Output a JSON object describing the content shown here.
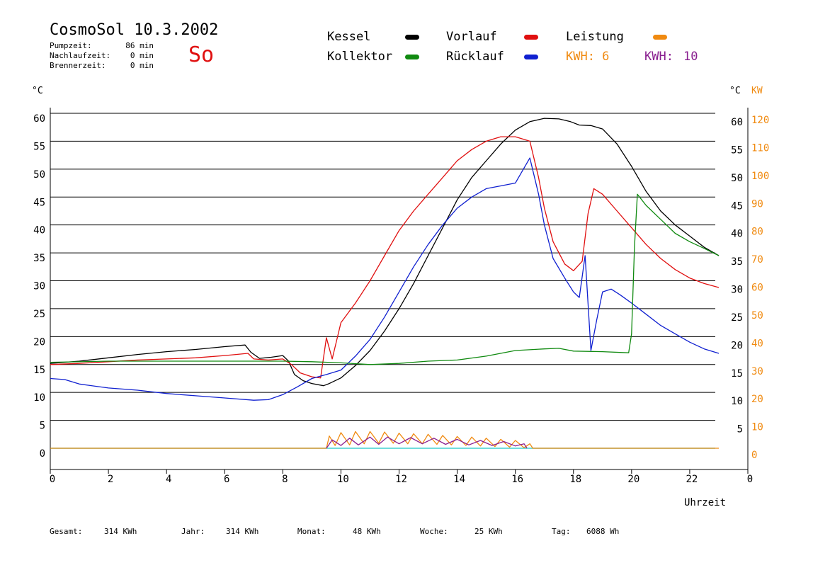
{
  "header": {
    "title": "CosmoSol 10.3.2002",
    "day": "So",
    "stats": [
      {
        "label": "Pumpzeit:",
        "value": "86 min"
      },
      {
        "label": "Nachlaufzeit:",
        "value": "0 min"
      },
      {
        "label": "Brennerzeit:",
        "value": "0 min"
      }
    ]
  },
  "legend": {
    "kessel": "Kessel",
    "vorlauf": "Vorlauf",
    "leistung": "Leistung",
    "kollektor": "Kollektor",
    "ruecklauf": "Rücklauf",
    "kwh1": "KWH: 6",
    "kwh2_label": "KWH:",
    "kwh2_value": "10",
    "colors": {
      "kessel": "#000000",
      "vorlauf": "#e01010",
      "leistung": "#f08a10",
      "kollektor": "#108a10",
      "ruecklauf": "#1020d0",
      "kwh2": "#8a2090",
      "baseline": "#40d0d0"
    }
  },
  "axes": {
    "left_unit": "°C",
    "right_unit_c": "°C",
    "right_unit_kw": "KW",
    "xlabel": "Uhrzeit"
  },
  "footer": [
    {
      "label": "Gesamt:",
      "value": "314 KWh"
    },
    {
      "label": "Jahr:",
      "value": "314 KWh"
    },
    {
      "label": "Monat:",
      "value": "48 KWh"
    },
    {
      "label": "Woche:",
      "value": "25 KWh"
    },
    {
      "label": "Tag:",
      "value": "6088 Wh"
    }
  ],
  "chart_data": {
    "type": "line",
    "title": "CosmoSol 10.3.2002",
    "xlabel": "Uhrzeit",
    "ylabel": "°C",
    "y2label": "KW",
    "xlim": [
      0,
      24
    ],
    "ylim": [
      0,
      60
    ],
    "y2lim": [
      0,
      120
    ],
    "x_ticks": [
      "0",
      "2",
      "4",
      "6",
      "8",
      "10",
      "12",
      "14",
      "16",
      "18",
      "20",
      "22",
      "0"
    ],
    "y_ticks": [
      0,
      5,
      10,
      15,
      20,
      25,
      30,
      35,
      40,
      45,
      50,
      55,
      60
    ],
    "y_ticks_right_c": [
      5,
      10,
      15,
      20,
      25,
      30,
      35,
      40,
      45,
      50,
      55,
      60
    ],
    "y_ticks_right_kw": [
      0,
      10,
      20,
      30,
      40,
      50,
      60,
      70,
      80,
      90,
      100,
      110,
      120
    ],
    "grid": true,
    "series": [
      {
        "name": "Kessel",
        "color": "#000000",
        "points": [
          [
            0,
            15.2
          ],
          [
            1,
            15.6
          ],
          [
            2,
            16.2
          ],
          [
            3,
            16.8
          ],
          [
            4,
            17.3
          ],
          [
            5,
            17.7
          ],
          [
            6,
            18.2
          ],
          [
            6.7,
            18.5
          ],
          [
            6.9,
            17.2
          ],
          [
            7.2,
            16.1
          ],
          [
            7.6,
            16.3
          ],
          [
            8.0,
            16.6
          ],
          [
            8.2,
            15.6
          ],
          [
            8.4,
            13.2
          ],
          [
            8.7,
            12.1
          ],
          [
            9.0,
            11.6
          ],
          [
            9.4,
            11.2
          ],
          [
            9.6,
            11.6
          ],
          [
            10.0,
            12.6
          ],
          [
            10.5,
            14.8
          ],
          [
            11.0,
            17.5
          ],
          [
            11.5,
            21.0
          ],
          [
            12.0,
            25.0
          ],
          [
            12.5,
            29.5
          ],
          [
            13.0,
            34.5
          ],
          [
            13.5,
            39.5
          ],
          [
            14.0,
            44.5
          ],
          [
            14.5,
            48.5
          ],
          [
            15.0,
            51.5
          ],
          [
            15.5,
            54.5
          ],
          [
            16.0,
            57.0
          ],
          [
            16.5,
            58.5
          ],
          [
            17.0,
            59.1
          ],
          [
            17.5,
            59.0
          ],
          [
            17.9,
            58.5
          ],
          [
            18.2,
            57.9
          ],
          [
            18.6,
            57.8
          ],
          [
            19.0,
            57.2
          ],
          [
            19.5,
            54.5
          ],
          [
            20.0,
            50.5
          ],
          [
            20.5,
            46.0
          ],
          [
            21.0,
            42.5
          ],
          [
            21.5,
            40.0
          ],
          [
            22.0,
            38.0
          ],
          [
            22.5,
            36.0
          ],
          [
            23.0,
            34.5
          ]
        ]
      },
      {
        "name": "Vorlauf",
        "color": "#e01010",
        "points": [
          [
            0,
            15.0
          ],
          [
            1,
            15.2
          ],
          [
            2,
            15.5
          ],
          [
            3,
            15.8
          ],
          [
            4,
            16.0
          ],
          [
            5,
            16.2
          ],
          [
            6,
            16.6
          ],
          [
            6.8,
            17.0
          ],
          [
            7.0,
            16.0
          ],
          [
            7.5,
            15.8
          ],
          [
            8.0,
            16.0
          ],
          [
            8.3,
            15.0
          ],
          [
            8.6,
            13.5
          ],
          [
            9.0,
            12.8
          ],
          [
            9.3,
            12.6
          ],
          [
            9.5,
            19.8
          ],
          [
            9.7,
            16.0
          ],
          [
            10.0,
            22.5
          ],
          [
            10.5,
            26.0
          ],
          [
            11.0,
            30.0
          ],
          [
            11.5,
            34.5
          ],
          [
            12.0,
            39.0
          ],
          [
            12.5,
            42.5
          ],
          [
            13.0,
            45.5
          ],
          [
            13.5,
            48.5
          ],
          [
            14.0,
            51.5
          ],
          [
            14.5,
            53.5
          ],
          [
            15.0,
            55.0
          ],
          [
            15.5,
            55.8
          ],
          [
            16.0,
            55.8
          ],
          [
            16.5,
            55.0
          ],
          [
            16.8,
            48.5
          ],
          [
            17.0,
            43.0
          ],
          [
            17.3,
            37.0
          ],
          [
            17.7,
            33.0
          ],
          [
            18.0,
            31.8
          ],
          [
            18.3,
            33.5
          ],
          [
            18.5,
            42.0
          ],
          [
            18.7,
            46.5
          ],
          [
            19.0,
            45.5
          ],
          [
            19.5,
            42.5
          ],
          [
            20.0,
            39.5
          ],
          [
            20.5,
            36.5
          ],
          [
            21.0,
            34.0
          ],
          [
            21.5,
            32.0
          ],
          [
            22.0,
            30.5
          ],
          [
            22.5,
            29.5
          ],
          [
            23.0,
            28.8
          ]
        ]
      },
      {
        "name": "Rücklauf",
        "color": "#1020d0",
        "points": [
          [
            0,
            12.5
          ],
          [
            0.5,
            12.3
          ],
          [
            1,
            11.5
          ],
          [
            2,
            10.8
          ],
          [
            3,
            10.4
          ],
          [
            4,
            9.8
          ],
          [
            5,
            9.4
          ],
          [
            6,
            9.0
          ],
          [
            7,
            8.6
          ],
          [
            7.5,
            8.7
          ],
          [
            8.0,
            9.6
          ],
          [
            8.5,
            11.0
          ],
          [
            9.0,
            12.5
          ],
          [
            9.5,
            13.2
          ],
          [
            10.0,
            14.0
          ],
          [
            10.5,
            16.5
          ],
          [
            11.0,
            19.5
          ],
          [
            11.5,
            23.5
          ],
          [
            12.0,
            28.0
          ],
          [
            12.5,
            32.5
          ],
          [
            13.0,
            36.5
          ],
          [
            13.5,
            40.0
          ],
          [
            14.0,
            43.0
          ],
          [
            14.5,
            45.0
          ],
          [
            15.0,
            46.5
          ],
          [
            15.5,
            47.0
          ],
          [
            16.0,
            47.5
          ],
          [
            16.5,
            52.0
          ],
          [
            16.8,
            45.5
          ],
          [
            17.0,
            40.0
          ],
          [
            17.3,
            34.0
          ],
          [
            17.7,
            30.5
          ],
          [
            18.0,
            28.0
          ],
          [
            18.2,
            27.0
          ],
          [
            18.4,
            34.5
          ],
          [
            18.6,
            17.5
          ],
          [
            18.8,
            23.0
          ],
          [
            19.0,
            28.0
          ],
          [
            19.3,
            28.5
          ],
          [
            19.6,
            27.5
          ],
          [
            20.0,
            26.0
          ],
          [
            20.5,
            24.0
          ],
          [
            21.0,
            22.0
          ],
          [
            21.5,
            20.5
          ],
          [
            22.0,
            19.0
          ],
          [
            22.5,
            17.8
          ],
          [
            23.0,
            17.0
          ]
        ]
      },
      {
        "name": "Kollektor",
        "color": "#108a10",
        "points": [
          [
            0,
            15.4
          ],
          [
            2,
            15.6
          ],
          [
            4,
            15.6
          ],
          [
            6,
            15.6
          ],
          [
            8,
            15.6
          ],
          [
            9,
            15.5
          ],
          [
            10,
            15.3
          ],
          [
            11,
            15.0
          ],
          [
            12,
            15.2
          ],
          [
            13,
            15.6
          ],
          [
            14,
            15.8
          ],
          [
            15,
            16.5
          ],
          [
            16,
            17.5
          ],
          [
            17,
            17.8
          ],
          [
            17.5,
            17.9
          ],
          [
            18,
            17.4
          ],
          [
            19,
            17.3
          ],
          [
            19.9,
            17.1
          ],
          [
            20.0,
            20.5
          ],
          [
            20.1,
            36.0
          ],
          [
            20.2,
            45.5
          ],
          [
            20.5,
            43.5
          ],
          [
            21.0,
            41.0
          ],
          [
            21.5,
            38.5
          ],
          [
            22.0,
            37.0
          ],
          [
            22.5,
            35.8
          ],
          [
            23.0,
            34.5
          ]
        ]
      },
      {
        "name": "Leistung",
        "color": "#f08a10",
        "points": [
          [
            0,
            0
          ],
          [
            9.5,
            0
          ],
          [
            9.6,
            2.2
          ],
          [
            9.8,
            0.5
          ],
          [
            10.0,
            2.8
          ],
          [
            10.3,
            0.6
          ],
          [
            10.5,
            3.0
          ],
          [
            10.8,
            0.8
          ],
          [
            11.0,
            3.0
          ],
          [
            11.3,
            0.9
          ],
          [
            11.5,
            2.9
          ],
          [
            11.8,
            0.9
          ],
          [
            12.0,
            2.7
          ],
          [
            12.3,
            0.8
          ],
          [
            12.5,
            2.6
          ],
          [
            12.8,
            0.8
          ],
          [
            13.0,
            2.5
          ],
          [
            13.3,
            0.7
          ],
          [
            13.5,
            2.3
          ],
          [
            13.8,
            0.6
          ],
          [
            14.0,
            2.1
          ],
          [
            14.3,
            0.5
          ],
          [
            14.5,
            2.0
          ],
          [
            14.8,
            0.4
          ],
          [
            15.0,
            1.8
          ],
          [
            15.3,
            0.3
          ],
          [
            15.5,
            1.6
          ],
          [
            15.8,
            0.2
          ],
          [
            16.0,
            1.4
          ],
          [
            16.3,
            0.1
          ],
          [
            16.5,
            0.8
          ],
          [
            16.6,
            0
          ],
          [
            23.0,
            0
          ]
        ]
      },
      {
        "name": "KWH: 10",
        "color": "#8a2090",
        "points": [
          [
            9.5,
            0
          ],
          [
            9.7,
            1.5
          ],
          [
            10.0,
            0.5
          ],
          [
            10.3,
            1.8
          ],
          [
            10.6,
            0.6
          ],
          [
            11.0,
            2.0
          ],
          [
            11.3,
            0.7
          ],
          [
            11.6,
            2.0
          ],
          [
            12.0,
            0.8
          ],
          [
            12.4,
            1.9
          ],
          [
            12.8,
            0.8
          ],
          [
            13.2,
            1.8
          ],
          [
            13.6,
            0.7
          ],
          [
            14.0,
            1.6
          ],
          [
            14.4,
            0.6
          ],
          [
            14.8,
            1.4
          ],
          [
            15.2,
            0.5
          ],
          [
            15.6,
            1.2
          ],
          [
            16.0,
            0.4
          ],
          [
            16.3,
            0.8
          ],
          [
            16.4,
            0
          ]
        ]
      }
    ]
  }
}
